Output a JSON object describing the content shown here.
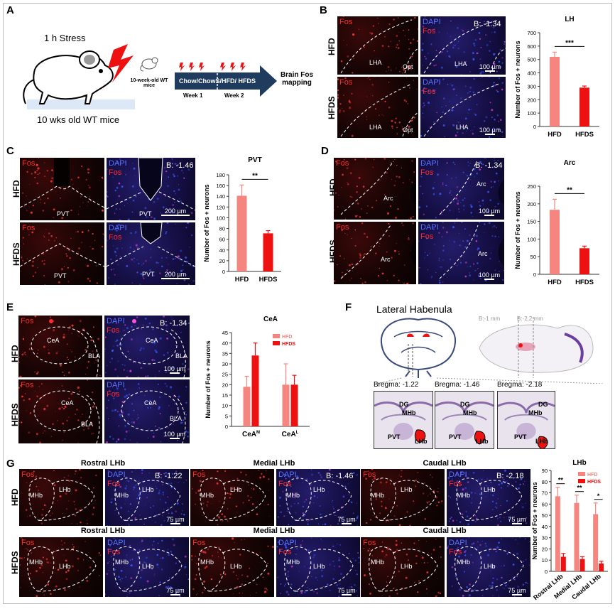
{
  "panels": {
    "A": {
      "label": "A",
      "stress_text": "1 h Stress",
      "mice_caption": "10 wks old WT mice",
      "small_mouse_caption": "10-week-old WT mice",
      "arrow_text": "Chow/ChowS/HFD/ HFDS",
      "week1": "Week 1",
      "week2": "Week 2",
      "brain_text": "Brain Fos mapping"
    },
    "B": {
      "label": "B",
      "row1": "HFD",
      "row2": "HFDS",
      "fos": "Fos",
      "dapi": "DAPI",
      "bregma": "B: -1.34",
      "region": "LHA",
      "opt": "Opt",
      "scale": "100 µm"
    },
    "C": {
      "label": "C",
      "row1": "HFD",
      "row2": "HFDS",
      "fos": "Fos",
      "dapi": "DAPI",
      "bregma": "B: -1.46",
      "region": "PVT",
      "scale": "200 µm"
    },
    "D": {
      "label": "D",
      "row1": "HFD",
      "row2": "HFDS",
      "fos": "Fos",
      "dapi": "DAPI",
      "bregma": "B: -1.34",
      "region": "Arc",
      "scale": "100 µm"
    },
    "E": {
      "label": "E",
      "row1": "HFD",
      "row2": "HFDS",
      "fos": "Fos",
      "dapi": "DAPI",
      "bregma": "B: -1.34",
      "cea": "CeA",
      "bla": "BLA",
      "scale": "100 µm"
    },
    "F": {
      "label": "F",
      "title": "Lateral Habenula",
      "b1mm": "B:-1 mm",
      "b22mm": "B:-2.2 mm",
      "sections": [
        {
          "bregma": "Bregma: -1.22",
          "labels": [
            "DG",
            "MHb",
            "PVT",
            "LHb"
          ]
        },
        {
          "bregma": "Bregma: -1.46",
          "labels": [
            "DG",
            "MHb",
            "PVT",
            "LHb"
          ]
        },
        {
          "bregma": "Bregma: -2.18",
          "labels": [
            "DG",
            "MHb",
            "PVT",
            "LHb"
          ]
        }
      ]
    },
    "G": {
      "label": "G",
      "row1": "HFD",
      "row2": "HFDS",
      "fos": "Fos",
      "dapi": "DAPI",
      "mhb": "MHb",
      "lhb": "LHb",
      "scale": "75 µm",
      "groups": [
        {
          "title": "Rostral LHb",
          "bregma": "B: -1.22"
        },
        {
          "title": "Medial LHb",
          "bregma": "B: -1.46"
        },
        {
          "title": "Caudal LHb",
          "bregma": "B: -2.18"
        }
      ]
    }
  },
  "colors": {
    "hfd": "#f4867f",
    "hfds": "#ee1111"
  },
  "chart_data": [
    {
      "type": "bar",
      "title": "LH",
      "categories": [
        "HFD",
        "HFDS"
      ],
      "values": [
        520,
        290
      ],
      "errors": [
        35,
        12
      ],
      "ylabel": "Number of Fos + neurons",
      "ylim": [
        0,
        700
      ],
      "yticks": [
        0,
        100,
        200,
        300,
        400,
        500,
        600,
        700
      ],
      "sig": "***"
    },
    {
      "type": "bar",
      "title": "PVT",
      "categories": [
        "HFD",
        "HFDS"
      ],
      "values": [
        141,
        71
      ],
      "errors": [
        20,
        5
      ],
      "ylabel": "Number of Fos + neurons",
      "ylim": [
        0,
        180
      ],
      "yticks": [
        0,
        20,
        40,
        60,
        80,
        100,
        120,
        140,
        160,
        180
      ],
      "sig": "**"
    },
    {
      "type": "bar",
      "title": "Arc",
      "categories": [
        "HFD",
        "HFDS"
      ],
      "values": [
        183,
        74
      ],
      "errors": [
        30,
        6
      ],
      "ylabel": "Number of Fos + neurons",
      "ylim": [
        0,
        250
      ],
      "yticks": [
        0,
        50,
        100,
        150,
        200,
        250
      ],
      "sig": "**"
    },
    {
      "type": "bar",
      "title": "CeA",
      "categories": [
        "CeA^M",
        "CeA^L"
      ],
      "series": [
        {
          "name": "HFD",
          "values": [
            19,
            20
          ],
          "errors": [
            5,
            10
          ]
        },
        {
          "name": "HFDS",
          "values": [
            34,
            20
          ],
          "errors": [
            6,
            4.5
          ]
        }
      ],
      "ylabel": "Number of Fos + neurons",
      "ylim": [
        0,
        45
      ],
      "yticks": [
        0,
        5,
        10,
        15,
        20,
        25,
        30,
        35,
        40,
        45
      ],
      "legend": "top-right"
    },
    {
      "type": "bar",
      "title": "LHb",
      "categories": [
        "Rostral LHb",
        "Medial LHb",
        "Caudal LHb"
      ],
      "series": [
        {
          "name": "HFD",
          "values": [
            67,
            61,
            51
          ],
          "errors": [
            8,
            7,
            10
          ]
        },
        {
          "name": "HFDS",
          "values": [
            13,
            11,
            7
          ],
          "errors": [
            3,
            2,
            2
          ]
        }
      ],
      "ylabel": "Number of Fos + neurons",
      "ylim": [
        0,
        90
      ],
      "yticks": [
        0,
        10,
        20,
        30,
        40,
        50,
        60,
        70,
        80,
        90
      ],
      "sig": [
        "**",
        "**",
        "*"
      ],
      "legend": "top-right"
    }
  ]
}
